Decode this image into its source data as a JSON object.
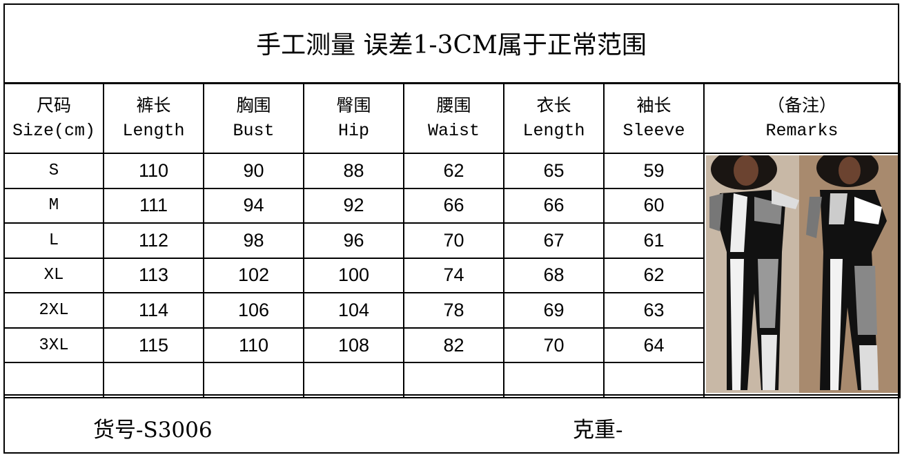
{
  "title": "手工测量 误差1-3CM属于正常范围",
  "headers": [
    {
      "cn": "尺码",
      "en": "Size(cm)"
    },
    {
      "cn": "裤长",
      "en": "Length"
    },
    {
      "cn": "胸围",
      "en": "Bust"
    },
    {
      "cn": "臀围",
      "en": "Hip"
    },
    {
      "cn": "腰围",
      "en": "Waist"
    },
    {
      "cn": "衣长",
      "en": "Length"
    },
    {
      "cn": "袖长",
      "en": "Sleeve"
    },
    {
      "cn": "（备注）",
      "en": "Remarks"
    }
  ],
  "rows": [
    [
      "S",
      "110",
      "90",
      "88",
      "62",
      "65",
      "59"
    ],
    [
      "M",
      "111",
      "94",
      "92",
      "66",
      "66",
      "60"
    ],
    [
      "L",
      "112",
      "98",
      "96",
      "70",
      "67",
      "61"
    ],
    [
      "XL",
      "113",
      "102",
      "100",
      "74",
      "68",
      "62"
    ],
    [
      "2XL",
      "114",
      "106",
      "104",
      "78",
      "69",
      "63"
    ],
    [
      "3XL",
      "115",
      "110",
      "108",
      "82",
      "70",
      "64"
    ]
  ],
  "footer": {
    "item_no": "货号-S3006",
    "weight": "克重-"
  }
}
